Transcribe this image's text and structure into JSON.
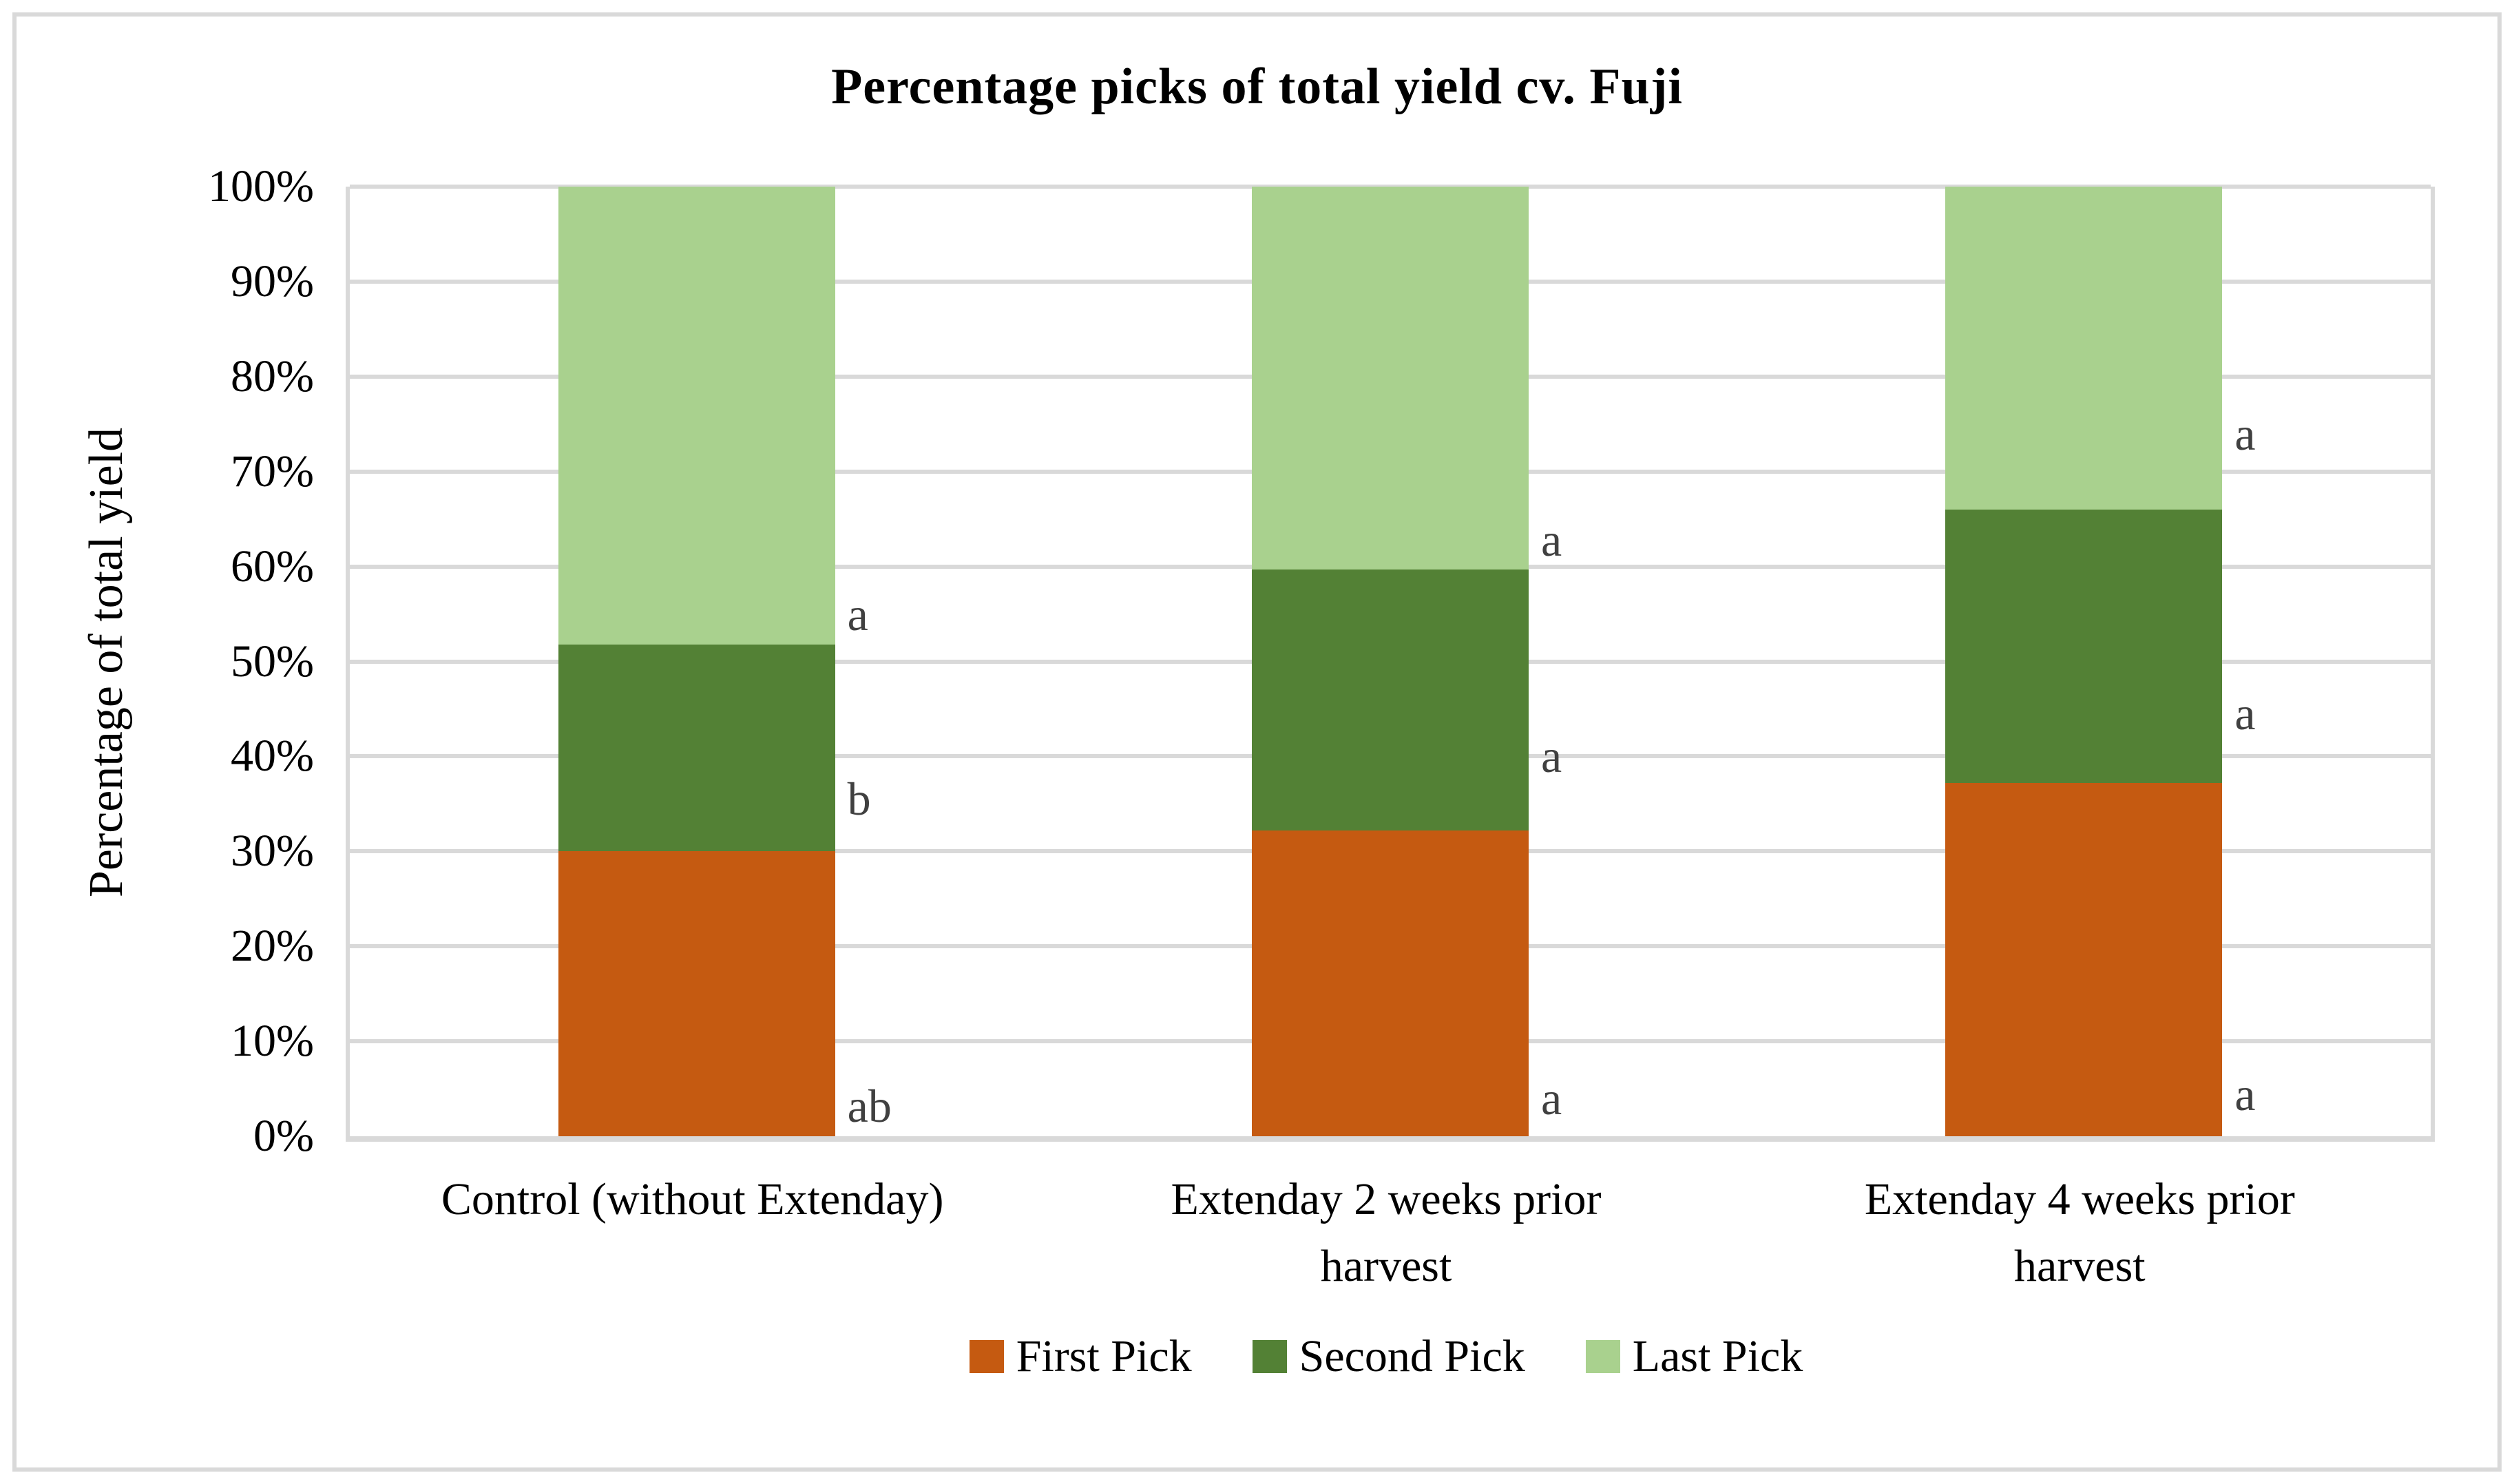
{
  "chart_data": {
    "type": "bar",
    "stacked": true,
    "title": "Percentage picks of total yield cv. Fuji",
    "ylabel": "Percentage of total yield",
    "xlabel": "",
    "ylim": [
      0,
      100
    ],
    "y_ticks": [
      "0%",
      "10%",
      "20%",
      "30%",
      "40%",
      "50%",
      "60%",
      "70%",
      "80%",
      "90%",
      "100%"
    ],
    "grid": "horizontal-only",
    "legend_position": "bottom-center",
    "categories": [
      "Control (without Extenday)",
      "Extenday 2 weeks prior\nharvest",
      "Extenday 4 weeks prior\nharvest"
    ],
    "series": [
      {
        "name": "First Pick",
        "color": "#C55A11",
        "values": [
          30.0,
          32.2,
          37.2
        ]
      },
      {
        "name": "Second Pick",
        "color": "#538135",
        "values": [
          21.8,
          27.5,
          28.8
        ]
      },
      {
        "name": "Last Pick",
        "color": "#A9D18E",
        "values": [
          48.2,
          40.3,
          34.0
        ]
      }
    ],
    "annotations": [
      [
        {
          "text": "ab",
          "y_pct": 3.2
        },
        {
          "text": "b",
          "y_pct": 35.5
        },
        {
          "text": "a",
          "y_pct": 55.0
        }
      ],
      [
        {
          "text": "a",
          "y_pct": 4.0
        },
        {
          "text": "a",
          "y_pct": 40.0
        },
        {
          "text": "a",
          "y_pct": 62.8
        }
      ],
      [
        {
          "text": "a",
          "y_pct": 4.4
        },
        {
          "text": "a",
          "y_pct": 44.5
        },
        {
          "text": "a",
          "y_pct": 74.0
        }
      ]
    ],
    "style": {
      "gridline_color": "#D9D9D9",
      "border_color": "#D9D9D9",
      "annotation_color": "#404040",
      "text_color": "#000000",
      "background": "#FFFFFF"
    }
  }
}
